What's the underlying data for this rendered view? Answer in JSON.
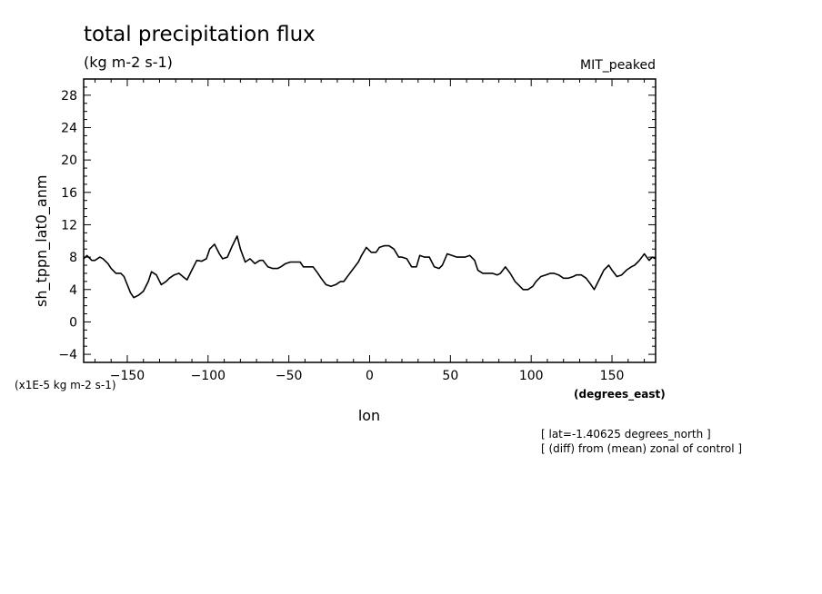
{
  "header": {
    "title": "total precipitation flux",
    "units": "(kg m-2 s-1)",
    "model": "MIT_peaked"
  },
  "notes": {
    "lat": "[ lat=-1.40625 degrees_north ]",
    "diff": "[ (diff) from (mean) zonal of control ]"
  },
  "chart_data": {
    "type": "line",
    "title": "total precipitation flux",
    "xlabel": "lon",
    "xunits": "(degrees_east)",
    "ylabel": "sh_tppn_lat0_anm",
    "yscale_note": "(x1E-5 kg m-2 s-1)",
    "xlim": [
      -177,
      177
    ],
    "ylim": [
      -5,
      30
    ],
    "xticks": [
      -150,
      -100,
      -50,
      0,
      50,
      100,
      150
    ],
    "yticks": [
      -4,
      0,
      4,
      8,
      12,
      16,
      20,
      24,
      28
    ],
    "series": [
      {
        "x": [
          -177,
          -175,
          -172,
          -170,
          -167,
          -165,
          -162,
          -160,
          -157,
          -154,
          -152,
          -148,
          -146,
          -143,
          -140,
          -137,
          -135,
          -132,
          -129,
          -126,
          -124,
          -121,
          -118,
          -115,
          -113,
          -110,
          -107,
          -104,
          -101,
          -99,
          -96,
          -93,
          -91,
          -88,
          -85,
          -82,
          -80,
          -77,
          -74,
          -71,
          -68,
          -66,
          -63,
          -60,
          -57,
          -55,
          -52,
          -49,
          -46,
          -43,
          -41,
          -38,
          -35,
          -32,
          -30,
          -27,
          -24,
          -21,
          -18,
          -16,
          -13,
          -10,
          -7,
          -5,
          -2,
          1,
          4,
          6,
          9,
          12,
          15,
          18,
          20,
          23,
          26,
          29,
          31,
          34,
          37,
          40,
          43,
          45,
          48,
          51,
          54,
          56,
          59,
          62,
          65,
          67,
          70,
          73,
          76,
          79,
          81,
          84,
          87,
          90,
          92,
          95,
          98,
          101,
          103,
          106,
          109,
          112,
          114,
          117,
          120,
          123,
          126,
          128,
          131,
          134,
          137,
          139,
          142,
          145,
          148,
          150,
          153,
          156,
          159,
          162,
          164,
          167,
          170,
          173,
          175,
          177
        ],
        "y": [
          7.8,
          8.2,
          7.6,
          7.6,
          8.0,
          7.8,
          7.2,
          6.6,
          6.0,
          6.0,
          5.6,
          3.6,
          3.0,
          3.3,
          3.8,
          5.0,
          6.2,
          5.8,
          4.6,
          5.0,
          5.4,
          5.8,
          6.0,
          5.5,
          5.2,
          6.4,
          7.6,
          7.5,
          7.8,
          9.0,
          9.6,
          8.4,
          7.8,
          8.0,
          9.4,
          10.6,
          9.0,
          7.4,
          7.8,
          7.2,
          7.6,
          7.6,
          6.8,
          6.6,
          6.6,
          6.8,
          7.2,
          7.4,
          7.4,
          7.4,
          6.8,
          6.8,
          6.8,
          6.0,
          5.4,
          4.6,
          4.4,
          4.6,
          5.0,
          5.0,
          5.8,
          6.6,
          7.4,
          8.2,
          9.2,
          8.6,
          8.6,
          9.2,
          9.4,
          9.4,
          9.0,
          8.0,
          8.0,
          7.8,
          6.8,
          6.8,
          8.2,
          8.0,
          8.0,
          6.8,
          6.6,
          7.0,
          8.4,
          8.2,
          8.0,
          8.0,
          8.0,
          8.2,
          7.6,
          6.4,
          6.0,
          6.0,
          6.0,
          5.8,
          6.0,
          6.8,
          6.0,
          5.0,
          4.6,
          4.0,
          4.0,
          4.4,
          5.0,
          5.6,
          5.8,
          6.0,
          6.0,
          5.8,
          5.4,
          5.4,
          5.6,
          5.8,
          5.8,
          5.4,
          4.6,
          4.0,
          5.2,
          6.4,
          7.0,
          6.4,
          5.6,
          5.8,
          6.4,
          6.8,
          7.0,
          7.6,
          8.4,
          7.6,
          8.0,
          7.8
        ]
      }
    ]
  }
}
